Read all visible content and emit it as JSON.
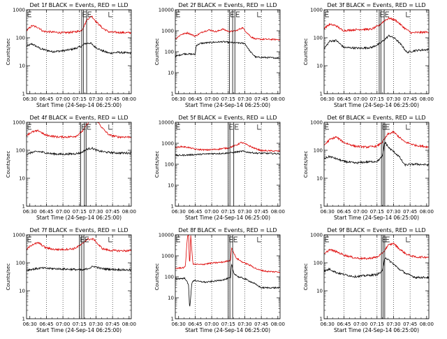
{
  "chart_data": {
    "type": "line",
    "y_scale": "log",
    "x_tick_labels": [
      "06:30",
      "06:45",
      "07:00",
      "07:15",
      "07:30",
      "07:45",
      "08:00"
    ],
    "x_ticks_minutes": [
      390,
      405,
      420,
      435,
      450,
      465,
      480
    ],
    "x_range_minutes": [
      387,
      482
    ],
    "x_axis_label": "Start Time (24-Sep-14 06:25:00)",
    "y_axis_label": "Counts/sec",
    "series_colors": {
      "events": "#000000",
      "lld": "#dd0000"
    },
    "panels": [
      {
        "title": "Det 1f BLACK = Events, RED = LLD",
        "ylim": [
          1,
          1000
        ],
        "y_tick_labels": [
          "1",
          "10",
          "100",
          "1000"
        ],
        "markers": [
          437,
          438.5,
          441.5
        ],
        "events": {
          "x": [
            387,
            392,
            400,
            410,
            420,
            430,
            437,
            440,
            445,
            448,
            455,
            462,
            470,
            482
          ],
          "y": [
            50,
            60,
            40,
            32,
            34,
            40,
            50,
            62,
            65,
            50,
            35,
            28,
            30,
            28
          ]
        },
        "lld": {
          "x": [
            387,
            392,
            398,
            402,
            410,
            420,
            430,
            437,
            442,
            446,
            450,
            456,
            462,
            470,
            482
          ],
          "y": [
            180,
            270,
            230,
            170,
            160,
            150,
            160,
            180,
            450,
            600,
            380,
            220,
            160,
            155,
            150
          ]
        }
      },
      {
        "title": "Det 2f BLACK = Events, RED = LLD",
        "ylim": [
          1,
          10000
        ],
        "y_tick_labels": [
          "1",
          "10",
          "100",
          "1000",
          "10000"
        ],
        "markers": [
          436,
          439,
          441
        ],
        "events": {
          "x": [
            387,
            395,
            405,
            406,
            410,
            420,
            430,
            436,
            440,
            445,
            450,
            455,
            460,
            482
          ],
          "y": [
            60,
            80,
            75,
            200,
            250,
            280,
            300,
            280,
            270,
            260,
            250,
            100,
            55,
            50
          ]
        },
        "lld": {
          "x": [
            387,
            392,
            398,
            405,
            412,
            418,
            424,
            430,
            436,
            442,
            448,
            452,
            456,
            460,
            482
          ],
          "y": [
            400,
            650,
            800,
            550,
            900,
            1100,
            900,
            1200,
            900,
            1000,
            1400,
            800,
            500,
            400,
            380
          ]
        }
      },
      {
        "title": "Det 3f BLACK = Events, RED = LLD",
        "ylim": [
          1,
          1000
        ],
        "y_tick_labels": [
          "1",
          "10",
          "100",
          "1000"
        ],
        "markers": [
          437,
          438.5,
          441.5
        ],
        "events": {
          "x": [
            387,
            392,
            398,
            405,
            420,
            430,
            437,
            441,
            446,
            452,
            458,
            462,
            470,
            482
          ],
          "y": [
            40,
            75,
            80,
            45,
            42,
            45,
            60,
            80,
            120,
            90,
            50,
            30,
            35,
            38
          ]
        },
        "lld": {
          "x": [
            387,
            392,
            398,
            404,
            420,
            430,
            437,
            442,
            446,
            452,
            460,
            466,
            482
          ],
          "y": [
            220,
            300,
            270,
            180,
            200,
            200,
            280,
            420,
            500,
            420,
            220,
            150,
            160
          ]
        }
      },
      {
        "title": "Det 4f BLACK = Events, RED = LLD",
        "ylim": [
          1,
          1000
        ],
        "y_tick_labels": [
          "1",
          "10",
          "100",
          "1000"
        ],
        "markers": [
          436,
          439.5,
          441
        ],
        "events": {
          "x": [
            387,
            392,
            398,
            410,
            420,
            430,
            436,
            442,
            446,
            452,
            460,
            470,
            482
          ],
          "y": [
            70,
            85,
            90,
            75,
            72,
            75,
            80,
            110,
            120,
            95,
            85,
            80,
            80
          ]
        },
        "lld": {
          "x": [
            387,
            392,
            398,
            404,
            415,
            425,
            432,
            438,
            444,
            448,
            452,
            456,
            462,
            470,
            482
          ],
          "y": [
            350,
            450,
            500,
            350,
            300,
            300,
            320,
            500,
            1100,
            1400,
            1000,
            600,
            350,
            300,
            300
          ]
        }
      },
      {
        "title": "Det 5f BLACK = Events, RED = LLD",
        "ylim": [
          1,
          10000
        ],
        "y_tick_labels": [
          "1",
          "10",
          "100",
          "1000",
          "10000"
        ],
        "markers": [
          435,
          436.5,
          440
        ],
        "events": {
          "x": [
            387,
            400,
            410,
            420,
            430,
            437,
            442,
            448,
            452,
            460,
            482
          ],
          "y": [
            260,
            280,
            300,
            320,
            330,
            350,
            380,
            420,
            380,
            340,
            320
          ]
        },
        "lld": {
          "x": [
            387,
            392,
            398,
            405,
            415,
            425,
            435,
            442,
            447,
            452,
            458,
            465,
            482
          ],
          "y": [
            600,
            700,
            650,
            520,
            480,
            520,
            600,
            800,
            1100,
            850,
            600,
            450,
            420
          ]
        }
      },
      {
        "title": "Det 6f BLACK = Events, RED = LLD",
        "ylim": [
          1,
          1000
        ],
        "y_tick_labels": [
          "1",
          "10",
          "100",
          "1000"
        ],
        "markers": [
          439,
          440.5,
          442
        ],
        "events": {
          "x": [
            387,
            392,
            398,
            405,
            415,
            425,
            435,
            440,
            442,
            446,
            450,
            455,
            460,
            470,
            482
          ],
          "y": [
            50,
            60,
            50,
            40,
            35,
            38,
            40,
            60,
            200,
            120,
            90,
            60,
            30,
            32,
            30
          ]
        },
        "lld": {
          "x": [
            387,
            392,
            398,
            405,
            415,
            425,
            435,
            440,
            445,
            450,
            455,
            460,
            470,
            482
          ],
          "y": [
            150,
            240,
            300,
            190,
            140,
            130,
            140,
            200,
            380,
            450,
            300,
            200,
            150,
            130
          ]
        }
      },
      {
        "title": "Det 7f BLACK = Events, RED = LLD",
        "ylim": [
          1,
          1000
        ],
        "y_tick_labels": [
          "1",
          "10",
          "100",
          "1000"
        ],
        "markers": [
          435,
          437,
          439
        ],
        "events": {
          "x": [
            387,
            400,
            410,
            420,
            430,
            438,
            444,
            448,
            455,
            465,
            482
          ],
          "y": [
            55,
            65,
            62,
            60,
            58,
            55,
            65,
            75,
            62,
            58,
            55
          ]
        },
        "lld": {
          "x": [
            387,
            392,
            398,
            404,
            412,
            420,
            430,
            437,
            442,
            448,
            452,
            456,
            462,
            470,
            482
          ],
          "y": [
            300,
            450,
            520,
            350,
            300,
            300,
            320,
            450,
            700,
            700,
            450,
            320,
            280,
            270,
            270
          ]
        }
      },
      {
        "title": "Det 8f BLACK = Events, RED = LLD",
        "ylim": [
          1,
          10000
        ],
        "y_tick_labels": [
          "1",
          "10",
          "100",
          "1000",
          "10000"
        ],
        "markers": [
          435,
          436.5,
          439
        ],
        "events": {
          "x": [
            387,
            396,
            399,
            400,
            402,
            404,
            408,
            415,
            425,
            432,
            437,
            438,
            440,
            444,
            450,
            458,
            465,
            482
          ],
          "y": [
            80,
            85,
            40,
            3,
            50,
            70,
            60,
            55,
            65,
            75,
            90,
            400,
            150,
            100,
            80,
            50,
            30,
            30
          ]
        },
        "lld": {
          "x": [
            387,
            396,
            398,
            399,
            400,
            401,
            403,
            410,
            420,
            430,
            437,
            438,
            442,
            448,
            455,
            462,
            470,
            482
          ],
          "y": [
            250,
            280,
            9000,
            9000,
            300,
            9000,
            400,
            380,
            450,
            500,
            600,
            2500,
            800,
            500,
            350,
            220,
            180,
            170
          ]
        }
      },
      {
        "title": "Det 9f BLACK = Events, RED = LLD",
        "ylim": [
          1,
          1000
        ],
        "y_tick_labels": [
          "1",
          "10",
          "100",
          "1000"
        ],
        "markers": [
          439,
          440.5,
          442
        ],
        "events": {
          "x": [
            387,
            392,
            398,
            405,
            415,
            425,
            435,
            440,
            442,
            446,
            450,
            455,
            462,
            470,
            482
          ],
          "y": [
            50,
            60,
            45,
            38,
            32,
            35,
            38,
            50,
            160,
            120,
            90,
            60,
            40,
            30,
            30
          ]
        },
        "lld": {
          "x": [
            387,
            392,
            398,
            405,
            415,
            425,
            435,
            440,
            445,
            450,
            455,
            462,
            470,
            482
          ],
          "y": [
            200,
            300,
            250,
            190,
            150,
            140,
            160,
            220,
            420,
            500,
            320,
            200,
            160,
            160
          ]
        }
      }
    ]
  }
}
